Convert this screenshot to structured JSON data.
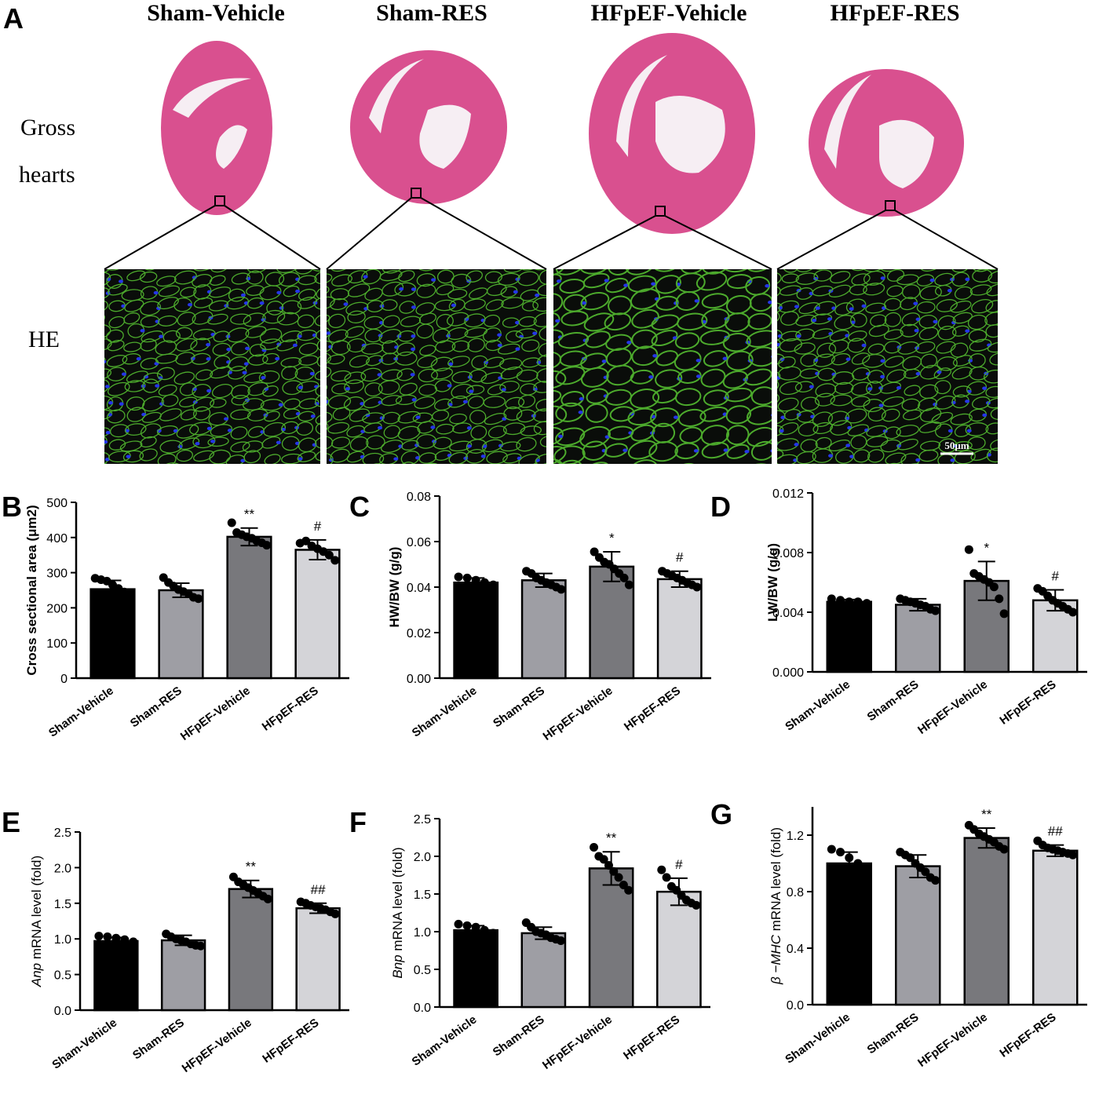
{
  "panel_a": {
    "letter": "A",
    "groups": [
      "Sham-Vehicle",
      "Sham-RES",
      "HFpEF-Vehicle",
      "HFpEF-RES"
    ],
    "row_label_gross_line1": "Gross",
    "row_label_gross_line2": "hearts",
    "row_label_he": "HE",
    "scale_bar": "50μm"
  },
  "colors": {
    "bar_fills": [
      "#000000",
      "#9e9ea4",
      "#78787c",
      "#d4d4d8"
    ],
    "he_tissue": "#d9508f",
    "he_lumen": "#f6eef3",
    "fluor_bg": "#0a0d0a",
    "fluor_membrane": "#4caa2c",
    "fluor_nuclei": "#2436e8"
  },
  "chart_data": [
    {
      "panel": "B",
      "type": "bar",
      "categories": [
        "Sham-Vehicle",
        "Sham-RES",
        "HFpEF-Vehicle",
        "HFpEF-RES"
      ],
      "ylabel": "Cross sectional area (μm2)",
      "ylim": [
        0,
        500
      ],
      "ticks": [
        "0",
        "100",
        "200",
        "300",
        "400",
        "500"
      ],
      "values": [
        253,
        250,
        402,
        365
      ],
      "errors": [
        25,
        20,
        25,
        28
      ],
      "points": [
        [
          284,
          280,
          276,
          265,
          255,
          245,
          230
        ],
        [
          286,
          272,
          262,
          252,
          246,
          240,
          230,
          226
        ],
        [
          442,
          414,
          408,
          402,
          398,
          390,
          385,
          378
        ],
        [
          384,
          390,
          376,
          368,
          360,
          350,
          335
        ]
      ],
      "marks": [
        "",
        "",
        "**",
        "#"
      ]
    },
    {
      "panel": "C",
      "type": "bar",
      "categories": [
        "Sham-Vehicle",
        "Sham-RES",
        "HFpEF-Vehicle",
        "HFpEF-RES"
      ],
      "ylabel": "HW/BW (g/g)",
      "ylim": [
        0,
        0.08
      ],
      "ticks": [
        "0.00",
        "0.02",
        "0.04",
        "0.06",
        "0.08"
      ],
      "values": [
        0.042,
        0.043,
        0.049,
        0.0435
      ],
      "errors": [
        0.002,
        0.003,
        0.0065,
        0.0035
      ],
      "points": [
        [
          0.0445,
          0.044,
          0.043,
          0.042,
          0.041
        ],
        [
          0.047,
          0.046,
          0.044,
          0.043,
          0.042,
          0.041,
          0.04,
          0.039
        ],
        [
          0.0555,
          0.053,
          0.051,
          0.05,
          0.048,
          0.046,
          0.044,
          0.041
        ],
        [
          0.047,
          0.046,
          0.045,
          0.044,
          0.043,
          0.042,
          0.041,
          0.04
        ]
      ],
      "marks": [
        "",
        "",
        "*",
        "#"
      ]
    },
    {
      "panel": "D",
      "type": "bar",
      "categories": [
        "Sham-Vehicle",
        "Sham-RES",
        "HFpEF-Vehicle",
        "HFpEF-RES"
      ],
      "ylabel": "LW/BW (g/g)",
      "ylim": [
        0,
        0.012
      ],
      "ticks": [
        "0.000",
        "0.004",
        "0.008",
        "0.012"
      ],
      "values": [
        0.0047,
        0.0045,
        0.0061,
        0.0048
      ],
      "errors": [
        0.00015,
        0.0004,
        0.0013,
        0.0007
      ],
      "points": [
        [
          0.0049,
          0.0048,
          0.0047,
          0.0047,
          0.0046
        ],
        [
          0.0049,
          0.0048,
          0.0047,
          0.0046,
          0.0045,
          0.0044,
          0.0042,
          0.0041
        ],
        [
          0.0082,
          0.0066,
          0.0064,
          0.0062,
          0.006,
          0.0057,
          0.0049,
          0.0039
        ],
        [
          0.0056,
          0.0054,
          0.0051,
          0.0048,
          0.0046,
          0.0044,
          0.0042,
          0.004
        ]
      ],
      "marks": [
        "",
        "",
        "*",
        "#"
      ]
    },
    {
      "panel": "E",
      "type": "bar",
      "categories": [
        "Sham-Vehicle",
        "Sham-RES",
        "HFpEF-Vehicle",
        "HFpEF-RES"
      ],
      "ylabel_italic": "Anp",
      "ylabel": " mRNA level (fold)",
      "ylim": [
        0,
        2.5
      ],
      "ticks": [
        "0.0",
        "0.5",
        "1.0",
        "1.5",
        "2.0",
        "2.5"
      ],
      "values": [
        0.97,
        0.98,
        1.7,
        1.43
      ],
      "errors": [
        0.05,
        0.07,
        0.12,
        0.07
      ],
      "points": [
        [
          1.04,
          1.03,
          1.01,
          0.99,
          0.96
        ],
        [
          1.07,
          1.03,
          1.0,
          0.98,
          0.96,
          0.93,
          0.91,
          0.9
        ],
        [
          1.87,
          1.8,
          1.76,
          1.72,
          1.68,
          1.64,
          1.6,
          1.56
        ],
        [
          1.52,
          1.5,
          1.47,
          1.45,
          1.43,
          1.41,
          1.38,
          1.35
        ]
      ],
      "marks": [
        "",
        "",
        "**",
        "##"
      ]
    },
    {
      "panel": "F",
      "type": "bar",
      "categories": [
        "Sham-Vehicle",
        "Sham-RES",
        "HFpEF-Vehicle",
        "HFpEF-RES"
      ],
      "ylabel_italic": "Bnp",
      "ylabel": " mRNA level (fold)",
      "ylim": [
        0,
        2.5
      ],
      "ticks": [
        "0.0",
        "0.5",
        "1.0",
        "1.5",
        "2.0",
        "2.5"
      ],
      "values": [
        1.02,
        0.98,
        1.84,
        1.53
      ],
      "errors": [
        0.06,
        0.08,
        0.22,
        0.18
      ],
      "points": [
        [
          1.1,
          1.08,
          1.06,
          1.02,
          0.98
        ],
        [
          1.12,
          1.06,
          1.0,
          0.98,
          0.96,
          0.92,
          0.9,
          0.88
        ],
        [
          2.12,
          2.0,
          1.96,
          1.88,
          1.8,
          1.72,
          1.62,
          1.55
        ],
        [
          1.82,
          1.72,
          1.6,
          1.55,
          1.48,
          1.42,
          1.38,
          1.35
        ]
      ],
      "marks": [
        "",
        "",
        "**",
        "#"
      ]
    },
    {
      "panel": "G",
      "type": "bar",
      "categories": [
        "Sham-Vehicle",
        "Sham-RES",
        "HFpEF-Vehicle",
        "HFpEF-RES"
      ],
      "ylabel_italic": "β −MHC",
      "ylabel": " mRNA level (fold)",
      "ylim": [
        0,
        1.4
      ],
      "ticks": [
        "0.0",
        "0.4",
        "0.8",
        "1.2"
      ],
      "values": [
        1.0,
        0.98,
        1.18,
        1.09
      ],
      "errors": [
        0.08,
        0.08,
        0.07,
        0.04
      ],
      "points": [
        [
          1.1,
          1.08,
          1.04,
          1.0,
          0.96
        ],
        [
          1.08,
          1.06,
          1.04,
          1.0,
          0.97,
          0.94,
          0.9,
          0.88
        ],
        [
          1.27,
          1.24,
          1.21,
          1.19,
          1.17,
          1.15,
          1.12,
          1.1
        ],
        [
          1.16,
          1.13,
          1.11,
          1.1,
          1.09,
          1.08,
          1.07,
          1.06
        ]
      ],
      "marks": [
        "",
        "",
        "**",
        "##"
      ]
    }
  ]
}
